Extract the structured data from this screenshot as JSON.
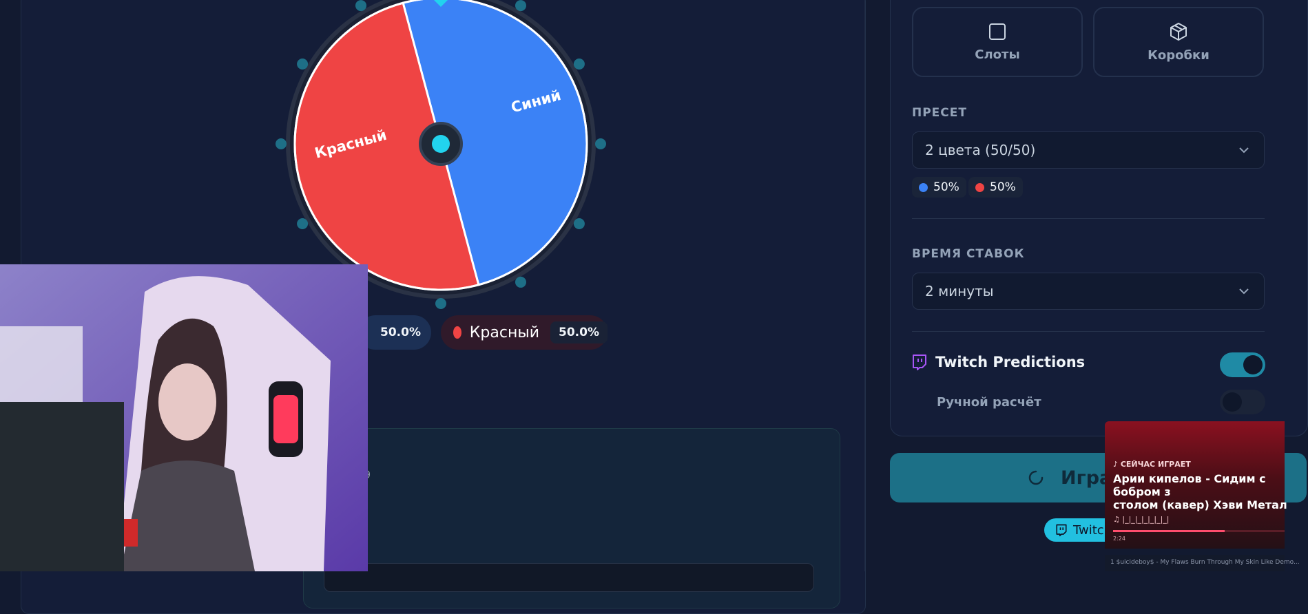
{
  "wheel": {
    "segments": [
      {
        "label": "Синий",
        "color": "#3b82f6",
        "share": 0.5
      },
      {
        "label": "Красный",
        "color": "#ef4444",
        "share": 0.5
      }
    ]
  },
  "legend": [
    {
      "label": "",
      "percent": "50.0%",
      "color": "#3b82f6"
    },
    {
      "label": "Красный",
      "percent": "50.0%",
      "color": "#ef4444"
    }
  ],
  "bottom_card": {
    "partial_text": "9"
  },
  "modes": {
    "slots": "Слоты",
    "boxes": "Коробки"
  },
  "preset": {
    "title": "ПРЕСЕТ",
    "value": "2 цвета (50/50)",
    "chips": [
      {
        "percent": "50%",
        "color": "#3b82f6"
      },
      {
        "percent": "50%",
        "color": "#ef4444"
      }
    ]
  },
  "bet_time": {
    "title": "ВРЕМЯ СТАВОК",
    "value": "2 минуты"
  },
  "twitch_predictions": {
    "label": "Twitch Predictions",
    "enabled": true
  },
  "manual_calc": {
    "label": "Ручной расчёт",
    "enabled": false
  },
  "start_button": {
    "label": "Игра"
  },
  "twitch_chip": {
    "label": "Twitch"
  },
  "now_playing": {
    "tag": "♪ СЕЙЧАС ИГРАЕТ",
    "title": "Арии кипелов - Сидим с бобром з\nстолом (кавер) Хэви Метал",
    "artist": "♫ |_|_|_|_|_|_|_|",
    "time": "2:24",
    "progress": 0.65,
    "next": "1   $uicideboy$ - My Flaws Burn Through My Skin Like Demo..."
  },
  "colors": {
    "accent": "#22d3ee",
    "blue": "#3b82f6",
    "red": "#ef4444",
    "twitch": "#a855f7"
  }
}
